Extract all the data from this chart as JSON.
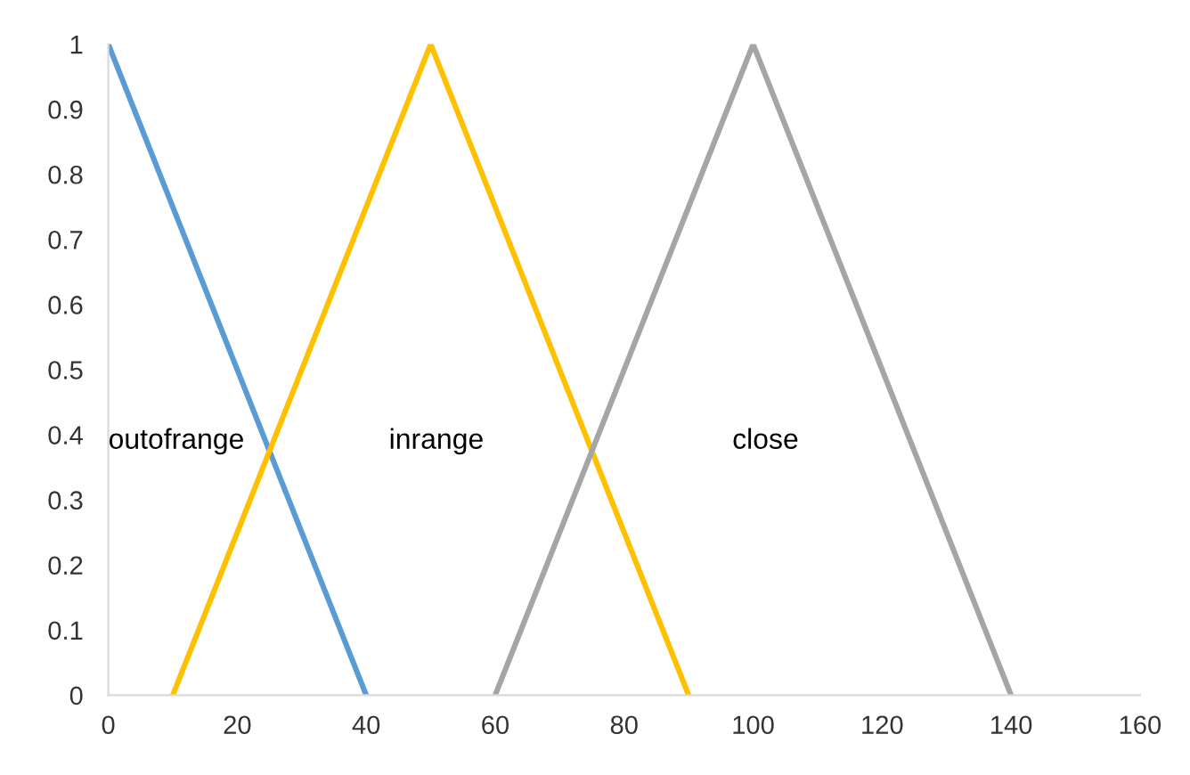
{
  "chart_data": {
    "type": "line",
    "xlim": [
      0,
      160
    ],
    "xticks": [
      0,
      20,
      40,
      60,
      80,
      100,
      120,
      140,
      160
    ],
    "ylim": [
      0,
      1
    ],
    "yticks": [
      0,
      0.1,
      0.2,
      0.3,
      0.4,
      0.5,
      0.6,
      0.7,
      0.8,
      0.9,
      1
    ],
    "grid": false,
    "legend": false,
    "marker": "none",
    "line_style": "solid",
    "series": [
      {
        "color": "#5b9bd5",
        "x": [
          0,
          40
        ],
        "values": [
          1,
          0
        ]
      },
      {
        "color": "#ffc000",
        "x": [
          10,
          50,
          90
        ],
        "values": [
          0,
          1,
          0
        ]
      },
      {
        "color": "#a5a5a5",
        "x": [
          60,
          100,
          140
        ],
        "values": [
          0,
          1,
          0
        ]
      }
    ],
    "annotations": [
      "outofrange",
      "inrange",
      "close"
    ]
  }
}
